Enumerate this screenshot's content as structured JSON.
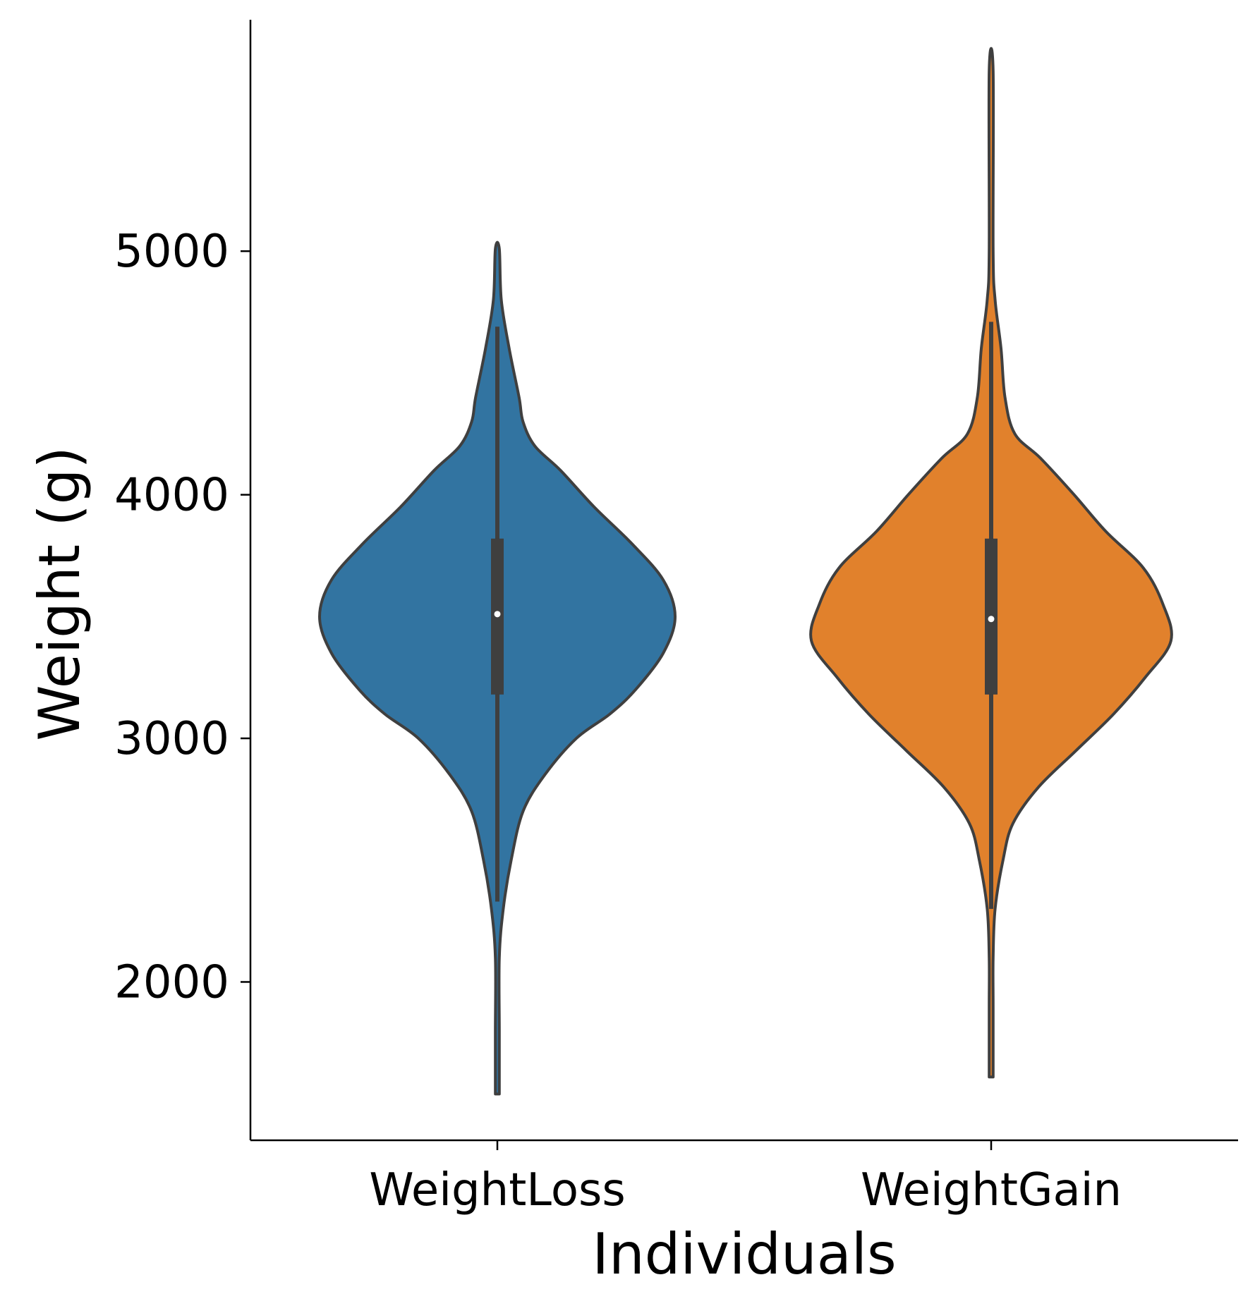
{
  "chart_data": {
    "type": "violin",
    "title": "",
    "xlabel": "Individuals",
    "ylabel": "Weight (g)",
    "ylim": [
      1350,
      5950
    ],
    "yticks": [
      2000,
      3000,
      4000,
      5000
    ],
    "grid": false,
    "categories": [
      "WeightLoss",
      "WeightGain"
    ],
    "series": [
      {
        "category": "WeightLoss",
        "color": "#3274A1",
        "min": 1540,
        "max": 5010,
        "whisker_low": 2330,
        "q1": 3180,
        "median": 3510,
        "q3": 3820,
        "whisker_high": 4690,
        "density": [
          [
            1540,
            0.01
          ],
          [
            1800,
            0.01
          ],
          [
            2100,
            0.01
          ],
          [
            2300,
            0.03
          ],
          [
            2500,
            0.07
          ],
          [
            2700,
            0.13
          ],
          [
            2850,
            0.24
          ],
          [
            3000,
            0.4
          ],
          [
            3100,
            0.57
          ],
          [
            3200,
            0.7
          ],
          [
            3350,
            0.84
          ],
          [
            3500,
            0.9
          ],
          [
            3650,
            0.84
          ],
          [
            3800,
            0.68
          ],
          [
            3950,
            0.49
          ],
          [
            4100,
            0.32
          ],
          [
            4200,
            0.19
          ],
          [
            4300,
            0.13
          ],
          [
            4400,
            0.11
          ],
          [
            4600,
            0.06
          ],
          [
            4800,
            0.02
          ],
          [
            5010,
            0.01
          ]
        ]
      },
      {
        "category": "WeightGain",
        "color": "#E1812C",
        "min": 1610,
        "max": 5740,
        "whisker_low": 2300,
        "q1": 3180,
        "median": 3490,
        "q3": 3820,
        "whisker_high": 4710,
        "density": [
          [
            1610,
            0.01
          ],
          [
            1900,
            0.01
          ],
          [
            2100,
            0.01
          ],
          [
            2300,
            0.02
          ],
          [
            2500,
            0.06
          ],
          [
            2650,
            0.11
          ],
          [
            2800,
            0.24
          ],
          [
            2950,
            0.43
          ],
          [
            3100,
            0.62
          ],
          [
            3250,
            0.78
          ],
          [
            3400,
            0.91
          ],
          [
            3550,
            0.87
          ],
          [
            3700,
            0.77
          ],
          [
            3850,
            0.58
          ],
          [
            4000,
            0.42
          ],
          [
            4150,
            0.25
          ],
          [
            4250,
            0.12
          ],
          [
            4400,
            0.07
          ],
          [
            4600,
            0.05
          ],
          [
            4800,
            0.02
          ],
          [
            5000,
            0.01
          ],
          [
            5740,
            0.01
          ]
        ]
      }
    ]
  }
}
